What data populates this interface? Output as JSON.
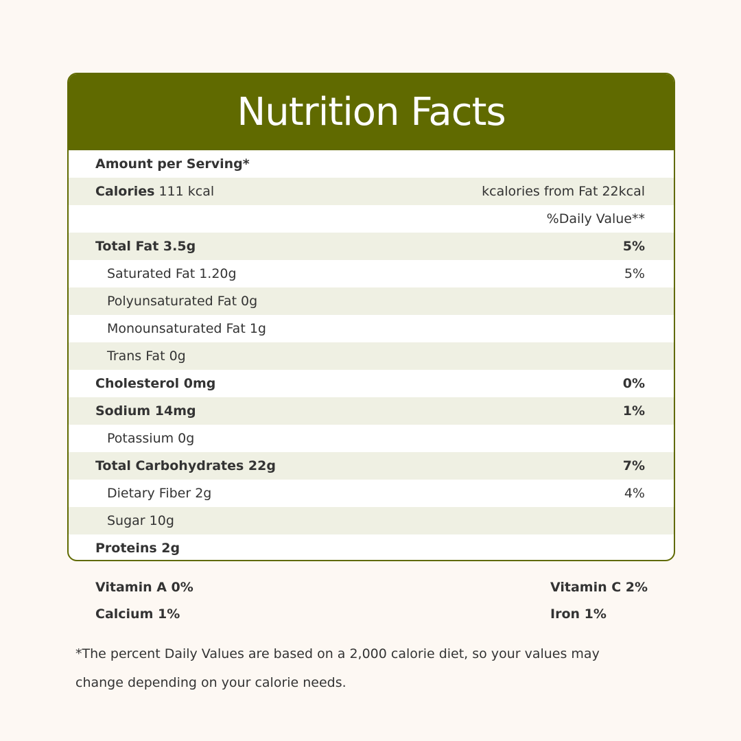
{
  "title": "Nutrition Facts",
  "colors": {
    "header": "#606a00",
    "shaded_row": "#eff0e3",
    "background": "#fdf8f3"
  },
  "amount_per_serving": "Amount per Serving*",
  "calories": {
    "label": "Calories",
    "value": "111 kcal",
    "from_fat": "kcalories from Fat 22kcal"
  },
  "daily_value_header": "%Daily Value**",
  "rows": [
    {
      "label": "Total Fat 3.5g",
      "dv": "5%",
      "bold": true
    },
    {
      "label": "Saturated Fat 1.20g",
      "dv": "5%"
    },
    {
      "label": "Polyunsaturated Fat 0g",
      "dv": ""
    },
    {
      "label": "Monounsaturated Fat 1g",
      "dv": ""
    },
    {
      "label": "Trans Fat 0g",
      "dv": ""
    },
    {
      "label": "Cholesterol 0mg",
      "dv": "0%",
      "bold": true
    },
    {
      "label": "Sodium 14mg",
      "dv": "1%",
      "bold": true
    },
    {
      "label": "Potassium 0g",
      "dv": ""
    },
    {
      "label": "Total Carbohydrates 22g",
      "dv": "7%",
      "bold": true
    },
    {
      "label": "Dietary Fiber 2g",
      "dv": "4%"
    },
    {
      "label": "Sugar 10g",
      "dv": ""
    },
    {
      "label": "Proteins 2g",
      "dv": "",
      "bold": true
    }
  ],
  "vitamins": {
    "vitamin_a": "Vitamin A 0%",
    "vitamin_c": "Vitamin C 2%",
    "calcium": "Calcium 1%",
    "iron": "Iron 1%"
  },
  "footnote": "*The percent Daily Values are based on a 2,000 calorie diet, so your values may change depending on your calorie needs."
}
